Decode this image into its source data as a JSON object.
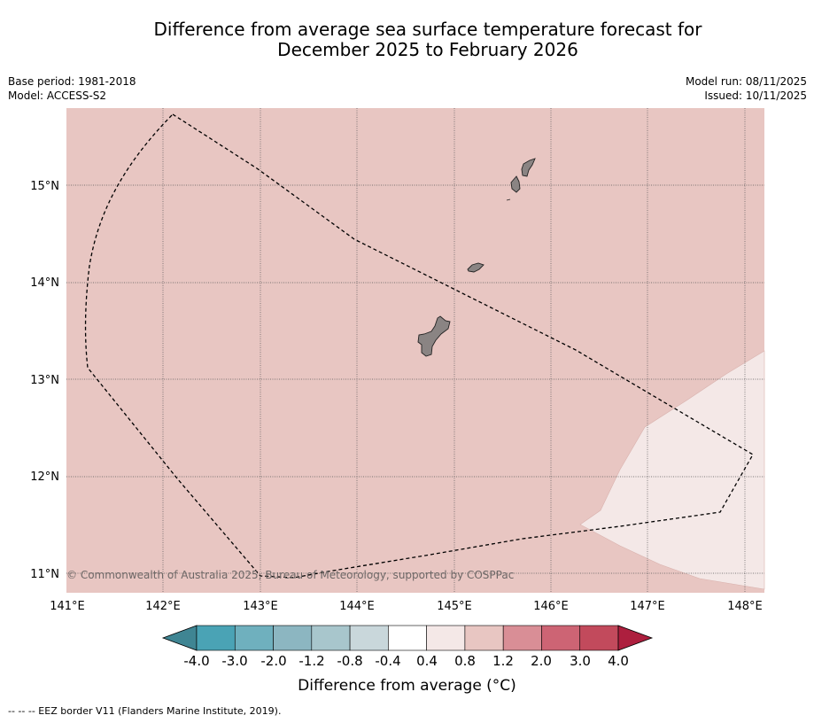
{
  "title_line1": "Difference from average sea surface temperature forecast for",
  "title_line2": "December 2025 to February 2026",
  "base_period": "Base period: 1981-2018",
  "model": "Model: ACCESS-S2",
  "model_run": "Model run: 08/11/2025",
  "issued": "Issued: 10/11/2025",
  "copyright": "© Commonwealth of Australia 2025, Bureau of Meteorology, supported by COSPPac",
  "lon_labels": [
    "141°E",
    "142°E",
    "143°E",
    "144°E",
    "145°E",
    "146°E",
    "147°E",
    "148°E"
  ],
  "lat_labels": [
    "15°N",
    "14°N",
    "13°N",
    "12°N",
    "11°N"
  ],
  "colorbar": {
    "title": "Difference from average (°C)",
    "ticks": [
      "-4.0",
      "-3.0",
      "-2.0",
      "-1.2",
      "-0.8",
      "-0.4",
      "0.4",
      "0.8",
      "1.2",
      "2.0",
      "3.0",
      "4.0"
    ],
    "colors": [
      "#3f8593",
      "#4aa3b5",
      "#6fb0be",
      "#8cb6c1",
      "#a8c6cc",
      "#c9d7db",
      "#ffffff",
      "#f4e8e7",
      "#e8c6c2",
      "#d98e96",
      "#cd6474",
      "#c24a5c",
      "#ad1f3e"
    ]
  },
  "colors": {
    "land": "#8a8483",
    "ocean_warm": "#e8c6c2",
    "ocean_slight": "#f4e8e7"
  },
  "legend_note": "--  --  -- EEZ border V11 (Flanders Marine Institute, 2019)."
}
